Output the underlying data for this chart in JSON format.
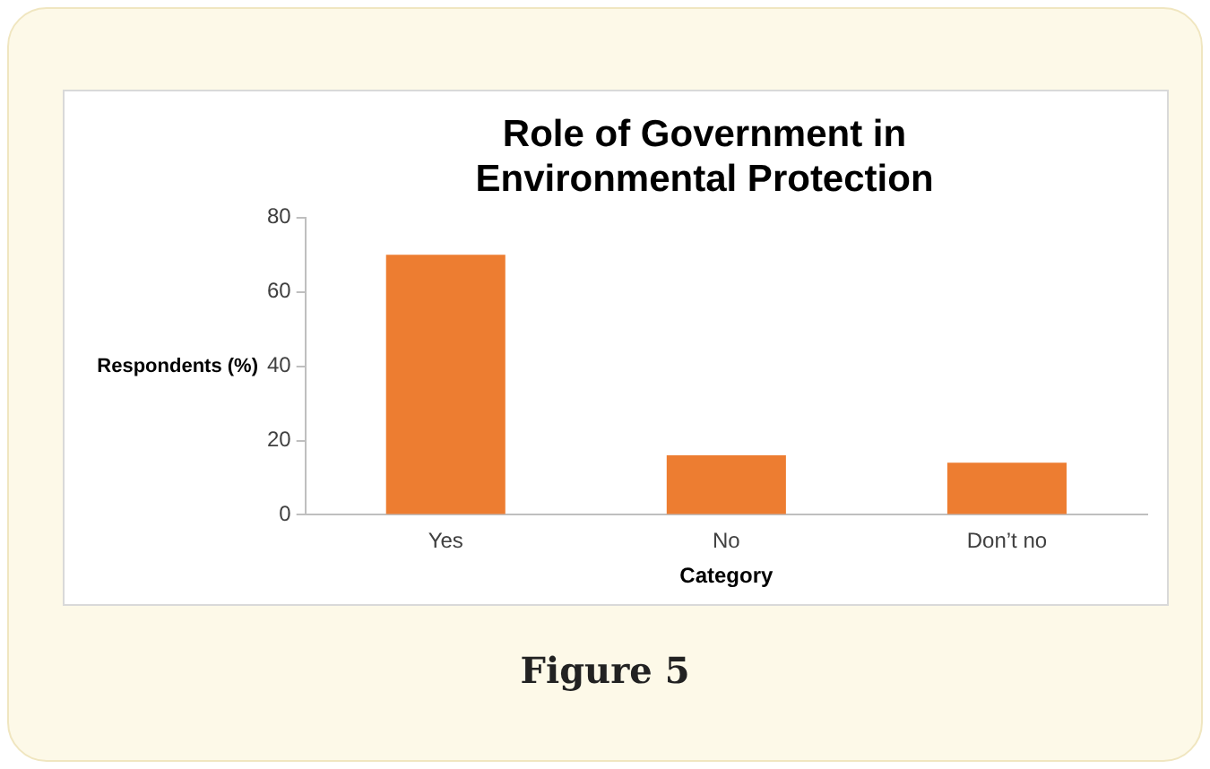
{
  "chart_data": {
    "type": "bar",
    "title": "Role of Government in Environmental Protection",
    "xlabel": "Category",
    "ylabel": "Respondents (%)",
    "categories": [
      "Yes",
      "No",
      "Don’t no"
    ],
    "values": [
      70,
      16,
      14
    ],
    "color": "#ed7d31",
    "ylim": [
      0,
      80
    ],
    "yticks": [
      0,
      20,
      40,
      60,
      80
    ],
    "grid": false,
    "legend": false,
    "annotations": [
      "Figure 5"
    ]
  }
}
